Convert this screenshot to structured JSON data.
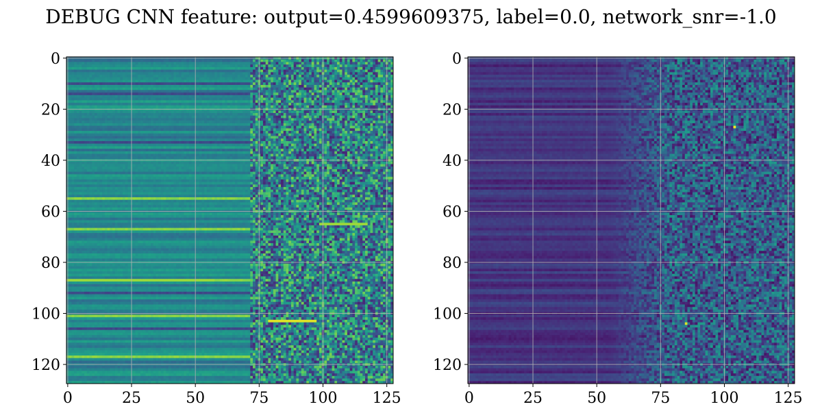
{
  "suptitle": "DEBUG CNN feature: output=0.4599609375, label=0.0, network_snr=-1.0",
  "chart_data": [
    {
      "type": "heatmap",
      "panel": "left",
      "rows": 128,
      "cols": 128,
      "colormap": "viridis",
      "xlim": [
        -0.5,
        127.5
      ],
      "ylim": [
        127.5,
        -0.5
      ],
      "xticks": [
        0,
        25,
        50,
        75,
        100,
        125
      ],
      "yticks": [
        0,
        20,
        40,
        60,
        80,
        100,
        120
      ],
      "grid": true,
      "description_of_values": "horizontal band structure with smooth rows for columns 0-75 and noisy speckle for columns 75-127; bright rows near 55, 67, 87, 101, 103, 117"
    },
    {
      "type": "heatmap",
      "panel": "right",
      "rows": 128,
      "cols": 128,
      "colormap": "viridis",
      "xlim": [
        -0.5,
        127.5
      ],
      "ylim": [
        127.5,
        -0.5
      ],
      "xticks": [
        0,
        25,
        50,
        75,
        100,
        125
      ],
      "yticks": [
        0,
        20,
        40,
        60,
        80,
        100,
        120
      ],
      "grid": true,
      "description_of_values": "mostly dark purple with faint horizontal bands; noise increases beyond column 60; isolated bright pixels near (104,27) and (85,104)"
    }
  ]
}
